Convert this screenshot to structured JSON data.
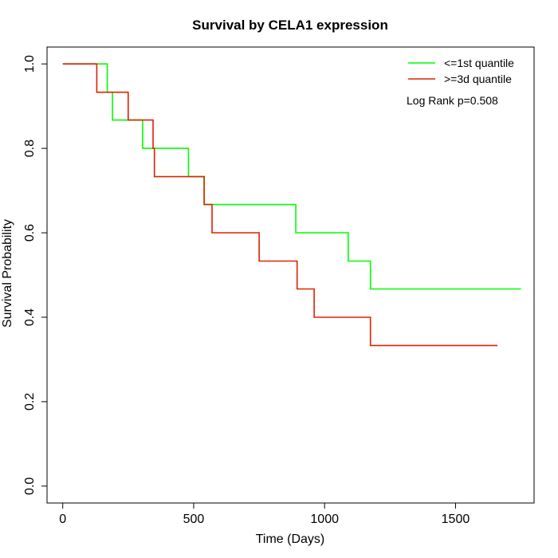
{
  "chart_data": {
    "type": "line",
    "title": "Survival by CELA1 expression",
    "xlabel": "Time (Days)",
    "ylabel": "Survival Probability",
    "xlim": [
      -60,
      1800
    ],
    "ylim": [
      -0.04,
      1.04
    ],
    "x_ticks": [
      0,
      500,
      1000,
      1500
    ],
    "y_ticks": [
      0.0,
      0.2,
      0.4,
      0.6,
      0.8,
      1.0
    ],
    "x_tick_labels": [
      "0",
      "500",
      "1000",
      "1500"
    ],
    "y_tick_labels": [
      "0.0",
      "0.2",
      "0.4",
      "0.6",
      "0.8",
      "1.0"
    ],
    "grid": false,
    "legend_position": "top-right",
    "annotation": "Log Rank p=0.508",
    "series": [
      {
        "name": "<=1st quantile",
        "color": "#00ff00",
        "step": true,
        "points": [
          [
            0,
            1.0
          ],
          [
            170,
            1.0
          ],
          [
            170,
            0.933
          ],
          [
            190,
            0.933
          ],
          [
            190,
            0.867
          ],
          [
            305,
            0.867
          ],
          [
            305,
            0.8
          ],
          [
            480,
            0.8
          ],
          [
            480,
            0.733
          ],
          [
            540,
            0.733
          ],
          [
            540,
            0.667
          ],
          [
            890,
            0.667
          ],
          [
            890,
            0.6
          ],
          [
            1090,
            0.6
          ],
          [
            1090,
            0.533
          ],
          [
            1175,
            0.533
          ],
          [
            1175,
            0.467
          ],
          [
            1750,
            0.467
          ]
        ]
      },
      {
        "name": ">=3d quantile",
        "color": "#dd2200",
        "step": true,
        "points": [
          [
            0,
            1.0
          ],
          [
            130,
            1.0
          ],
          [
            130,
            0.933
          ],
          [
            250,
            0.933
          ],
          [
            250,
            0.867
          ],
          [
            345,
            0.867
          ],
          [
            345,
            0.8
          ],
          [
            350,
            0.8
          ],
          [
            350,
            0.733
          ],
          [
            540,
            0.733
          ],
          [
            540,
            0.667
          ],
          [
            570,
            0.667
          ],
          [
            570,
            0.6
          ],
          [
            750,
            0.6
          ],
          [
            750,
            0.533
          ],
          [
            895,
            0.533
          ],
          [
            895,
            0.467
          ],
          [
            960,
            0.467
          ],
          [
            960,
            0.4
          ],
          [
            1175,
            0.4
          ],
          [
            1175,
            0.333
          ],
          [
            1660,
            0.333
          ]
        ]
      }
    ]
  }
}
